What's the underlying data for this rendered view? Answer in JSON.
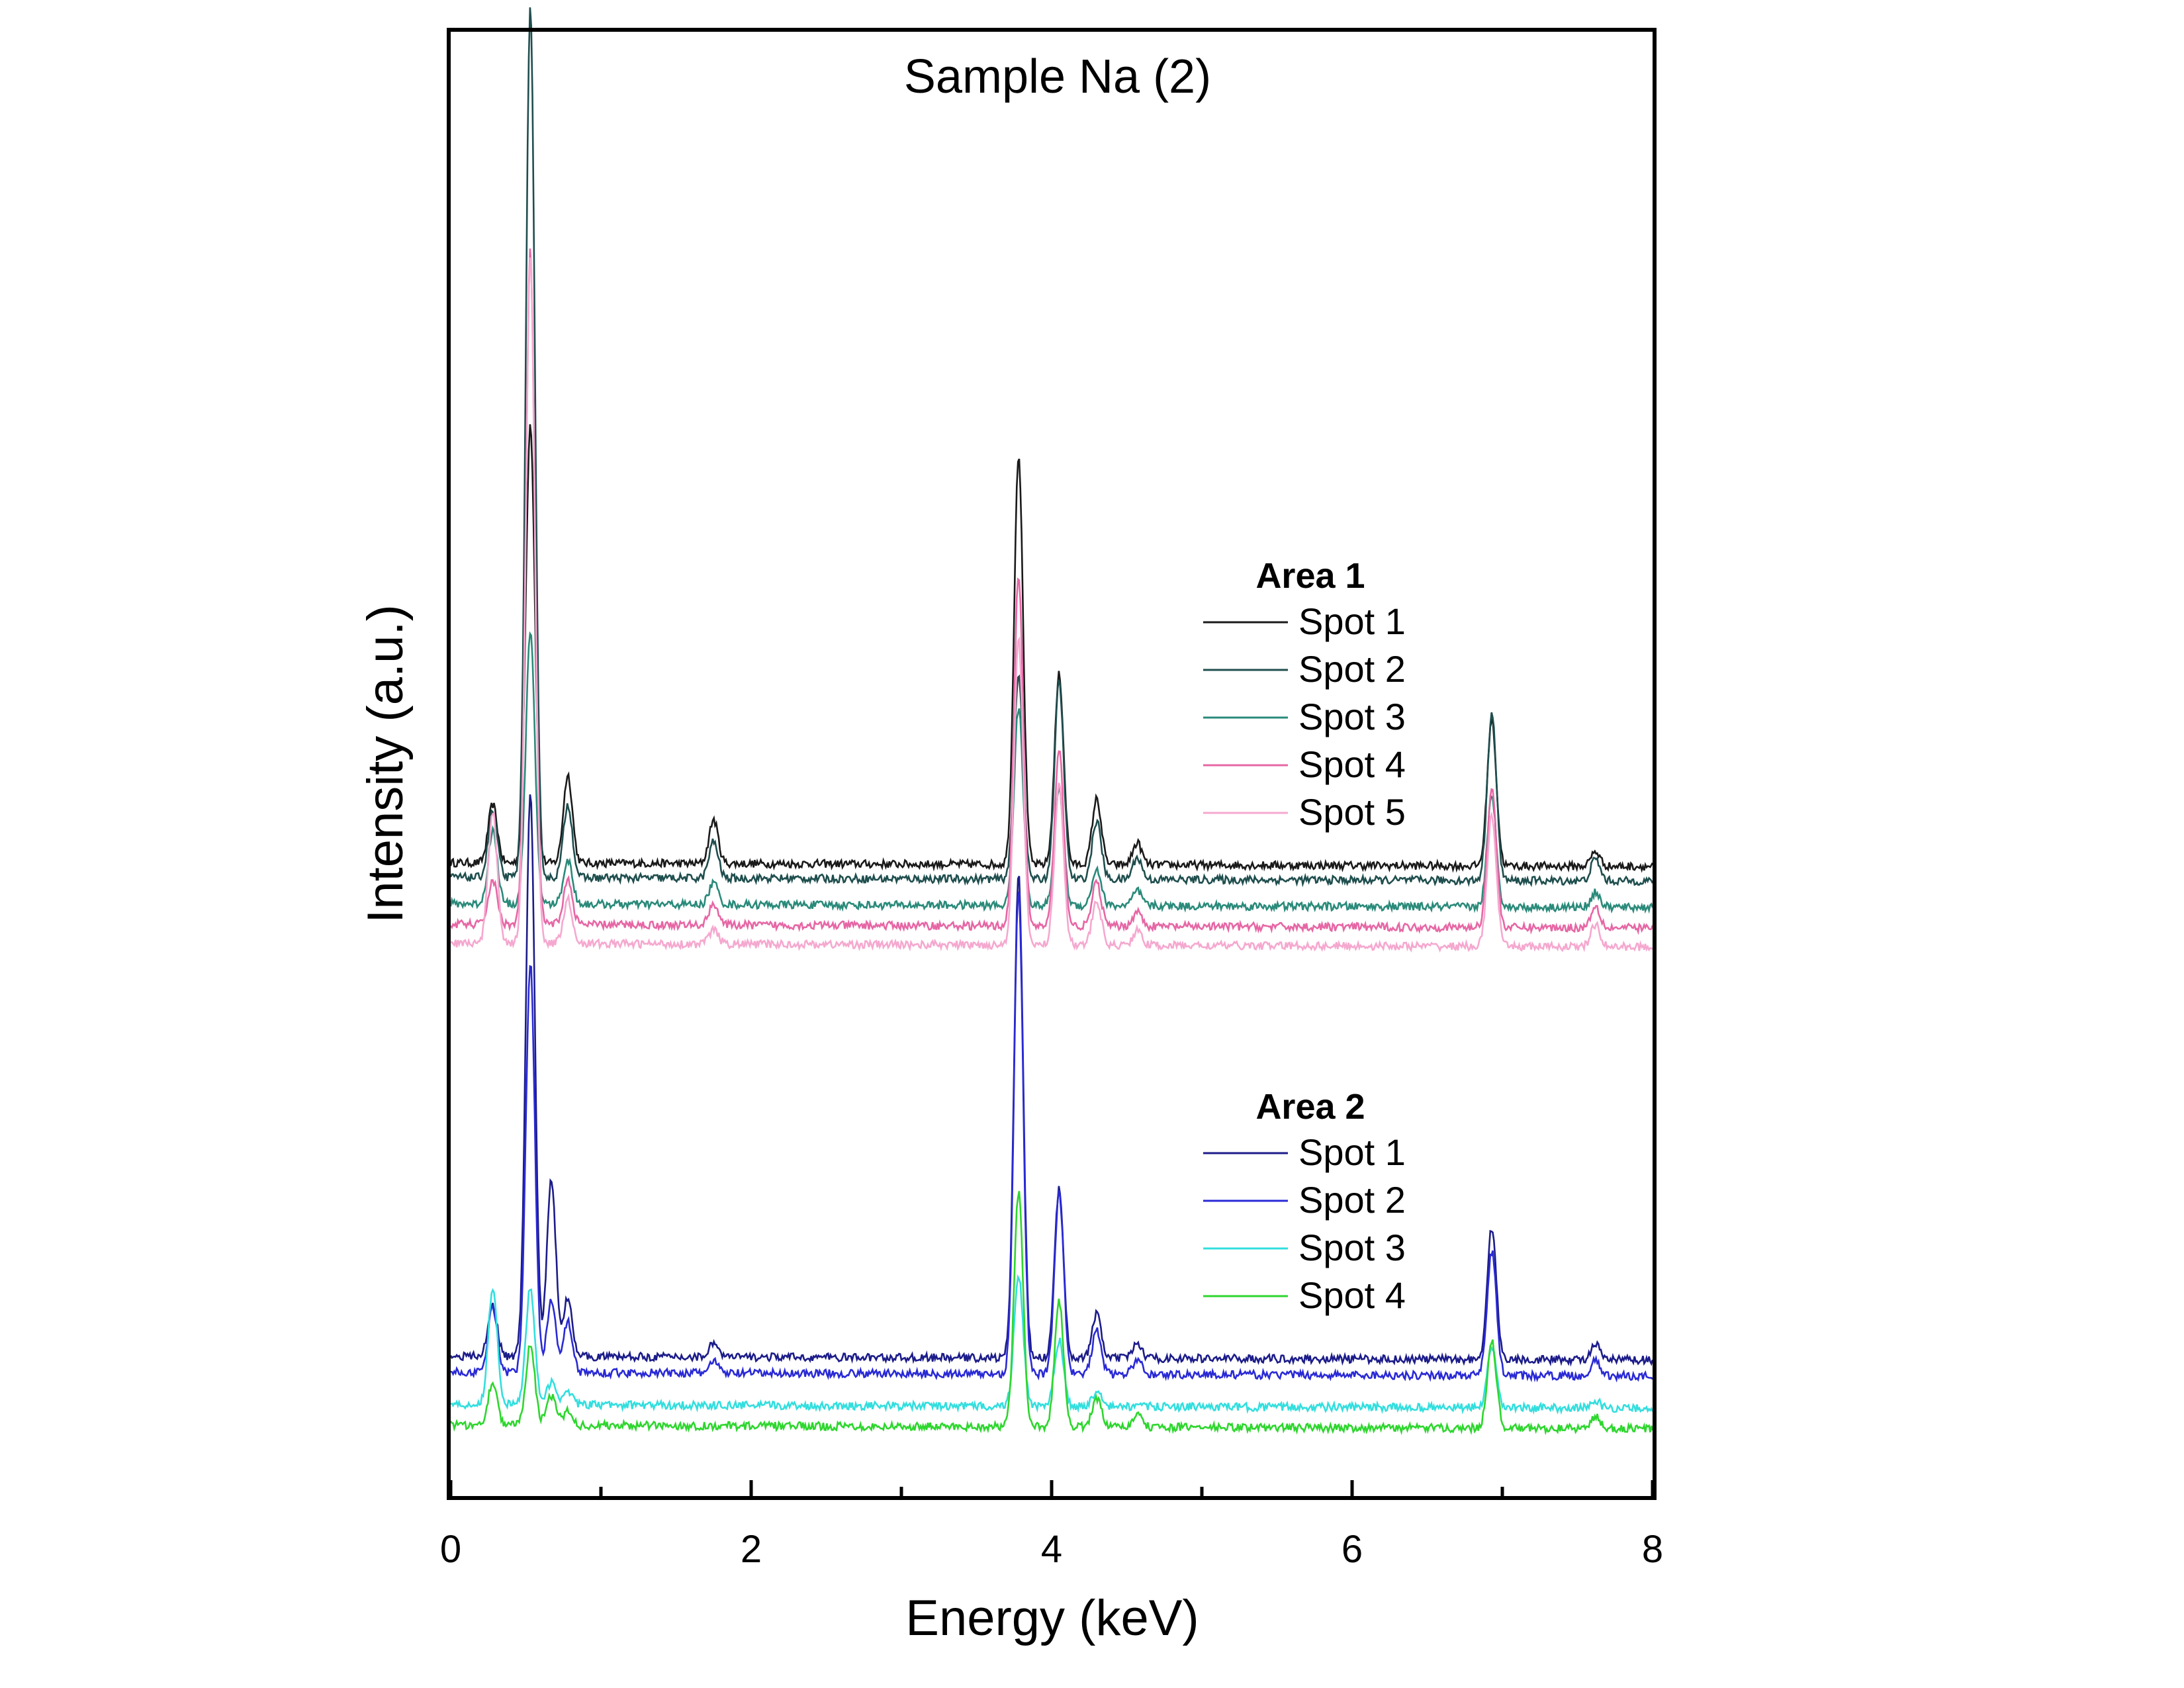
{
  "chart_data": {
    "type": "line",
    "title": "Sample Na (2)",
    "xlabel": "Energy (keV)",
    "ylabel": "Intensity (a.u.)",
    "xlim": [
      0,
      8
    ],
    "xticks": [
      0,
      2,
      4,
      6,
      8
    ],
    "x_minor_ticks": [
      1,
      3,
      5,
      7
    ],
    "yticks": [],
    "ylim": [
      0,
      100
    ],
    "grid": false,
    "legend_placement": "center-right",
    "legend_groups": [
      {
        "title": "Area 1",
        "entries": [
          "Spot 1",
          "Spot 2",
          "Spot 3",
          "Spot 4",
          "Spot 5"
        ]
      },
      {
        "title": "Area 2",
        "entries": [
          "Spot 1",
          "Spot 2",
          "Spot 3",
          "Spot 4"
        ]
      }
    ],
    "series": [
      {
        "name": "Spot 1",
        "group": "Area 1",
        "color": "#1a1a1a",
        "baseline": 43.0,
        "peaks": [
          [
            0.28,
            4.0
          ],
          [
            0.53,
            30.0
          ],
          [
            0.78,
            6.0
          ],
          [
            1.75,
            3.0
          ],
          [
            3.78,
            28.0
          ],
          [
            4.05,
            13.0
          ],
          [
            4.3,
            4.5
          ],
          [
            4.57,
            1.5
          ],
          [
            6.93,
            10.0
          ],
          [
            7.62,
            1.0
          ]
        ]
      },
      {
        "name": "Spot 2",
        "group": "Area 1",
        "color": "#1f4e4e",
        "baseline": 42.0,
        "peaks": [
          [
            0.28,
            4.5
          ],
          [
            0.53,
            59.5
          ],
          [
            0.78,
            5.0
          ],
          [
            1.75,
            2.5
          ],
          [
            3.78,
            14.0
          ],
          [
            4.05,
            13.5
          ],
          [
            4.3,
            4.0
          ],
          [
            4.57,
            1.5
          ],
          [
            6.93,
            11.5
          ],
          [
            7.62,
            1.5
          ]
        ]
      },
      {
        "name": "Spot 3",
        "group": "Area 1",
        "color": "#2a8a7a",
        "baseline": 40.2,
        "peaks": [
          [
            0.28,
            5.0
          ],
          [
            0.53,
            18.5
          ],
          [
            0.78,
            3.0
          ],
          [
            1.75,
            1.5
          ],
          [
            3.78,
            13.5
          ],
          [
            4.05,
            8.0
          ],
          [
            4.3,
            2.5
          ],
          [
            4.57,
            1.0
          ],
          [
            6.93,
            7.5
          ],
          [
            7.62,
            1.0
          ]
        ]
      },
      {
        "name": "Spot 4",
        "group": "Area 1",
        "color": "#e667a5",
        "baseline": 38.8,
        "peaks": [
          [
            0.28,
            3.0
          ],
          [
            0.53,
            46.0
          ],
          [
            0.78,
            3.0
          ],
          [
            1.75,
            1.5
          ],
          [
            3.78,
            24.0
          ],
          [
            4.05,
            12.0
          ],
          [
            4.3,
            3.0
          ],
          [
            4.57,
            1.0
          ],
          [
            6.93,
            9.5
          ],
          [
            7.62,
            1.5
          ]
        ]
      },
      {
        "name": "Spot 5",
        "group": "Area 1",
        "color": "#f5a8cf",
        "baseline": 37.5,
        "peaks": [
          [
            0.28,
            9.0
          ],
          [
            0.53,
            47.0
          ],
          [
            0.78,
            3.0
          ],
          [
            1.75,
            1.0
          ],
          [
            3.78,
            21.0
          ],
          [
            4.05,
            11.0
          ],
          [
            4.3,
            3.0
          ],
          [
            4.57,
            1.0
          ],
          [
            6.93,
            9.0
          ],
          [
            7.62,
            1.5
          ]
        ]
      },
      {
        "name": "Spot 1",
        "group": "Area 2",
        "color": "#1c1c8a",
        "baseline": 9.3,
        "peaks": [
          [
            0.28,
            3.5
          ],
          [
            0.53,
            38.5
          ],
          [
            0.67,
            12.0
          ],
          [
            0.78,
            4.0
          ],
          [
            1.75,
            1.0
          ],
          [
            3.78,
            33.0
          ],
          [
            4.05,
            11.5
          ],
          [
            4.3,
            3.0
          ],
          [
            4.57,
            1.0
          ],
          [
            6.93,
            9.0
          ],
          [
            7.62,
            1.0
          ]
        ]
      },
      {
        "name": "Spot 2",
        "group": "Area 2",
        "color": "#2a2ad6",
        "baseline": 8.2,
        "peaks": [
          [
            0.28,
            4.5
          ],
          [
            0.53,
            28.0
          ],
          [
            0.67,
            5.0
          ],
          [
            0.78,
            3.5
          ],
          [
            1.75,
            0.8
          ],
          [
            3.78,
            33.0
          ],
          [
            4.05,
            12.5
          ],
          [
            4.3,
            3.0
          ],
          [
            4.57,
            1.0
          ],
          [
            6.93,
            8.5
          ],
          [
            7.62,
            1.0
          ]
        ]
      },
      {
        "name": "Spot 3",
        "group": "Area 2",
        "color": "#33dede",
        "baseline": 6.0,
        "peaks": [
          [
            0.28,
            8.0
          ],
          [
            0.53,
            8.0
          ],
          [
            0.67,
            1.5
          ],
          [
            0.78,
            1.0
          ],
          [
            3.78,
            9.0
          ],
          [
            4.05,
            4.5
          ],
          [
            4.3,
            1.0
          ],
          [
            6.93,
            4.0
          ],
          [
            7.62,
            0.5
          ]
        ]
      },
      {
        "name": "Spot 4",
        "group": "Area 2",
        "color": "#2ed62e",
        "baseline": 4.6,
        "peaks": [
          [
            0.28,
            3.0
          ],
          [
            0.53,
            5.5
          ],
          [
            0.67,
            2.0
          ],
          [
            0.78,
            1.0
          ],
          [
            3.78,
            16.0
          ],
          [
            4.05,
            8.5
          ],
          [
            4.3,
            2.0
          ],
          [
            4.57,
            0.8
          ],
          [
            6.93,
            6.0
          ],
          [
            7.62,
            0.8
          ]
        ]
      }
    ]
  }
}
